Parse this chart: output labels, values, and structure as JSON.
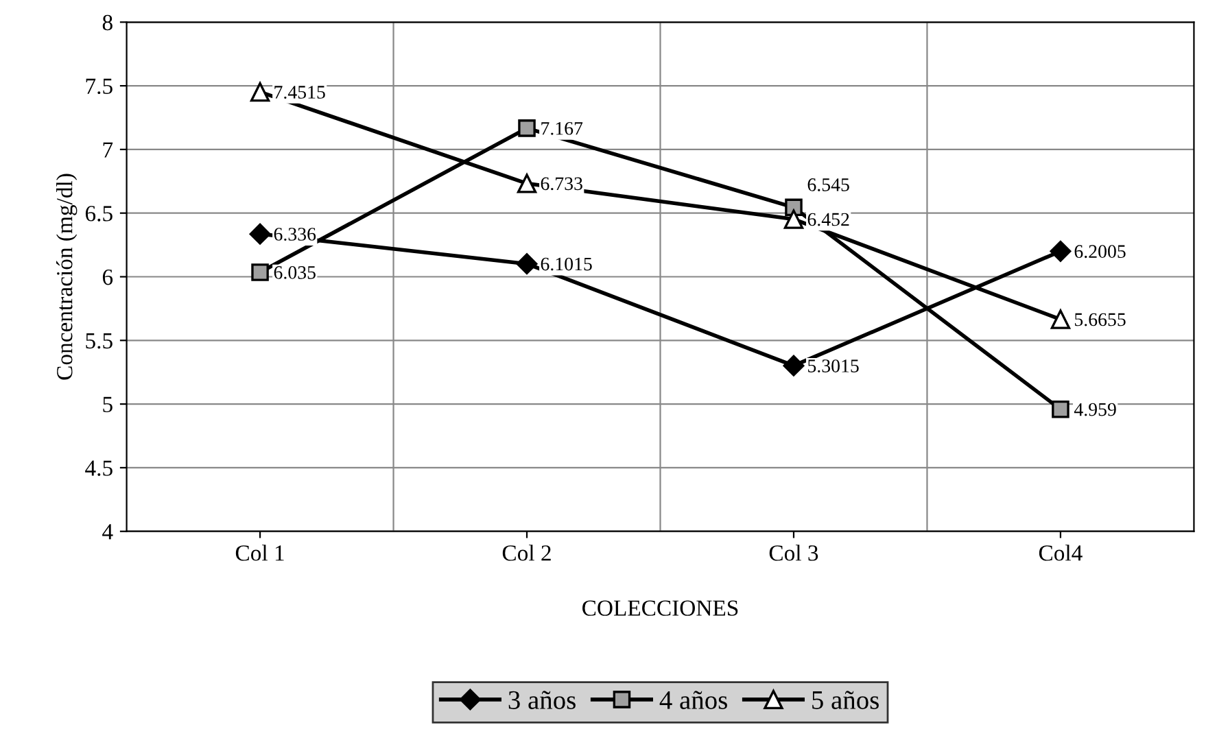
{
  "chart_data": {
    "type": "line",
    "xlabel": "COLECCIONES",
    "ylabel": "Concentración (mg/dl)",
    "categories": [
      "Col 1",
      "Col 2",
      "Col 3",
      "Col4"
    ],
    "series": [
      {
        "name": "3 años",
        "color": "#000000",
        "marker": "diamond",
        "values": [
          6.336,
          6.1015,
          5.3015,
          6.2005
        ]
      },
      {
        "name": "4 años",
        "color": "#000000",
        "marker": "square",
        "values": [
          6.035,
          7.167,
          6.545,
          4.959
        ]
      },
      {
        "name": "5 años",
        "color": "#000000",
        "marker": "triangle",
        "values": [
          7.4515,
          6.733,
          6.452,
          5.6655
        ]
      }
    ],
    "ylim": [
      4,
      8
    ],
    "yticks": [
      4,
      4.5,
      5,
      5.5,
      6,
      6.5,
      7,
      7.5,
      8
    ],
    "grid": true,
    "legend": "bottom",
    "data_labels": true,
    "line_style": "solid"
  }
}
